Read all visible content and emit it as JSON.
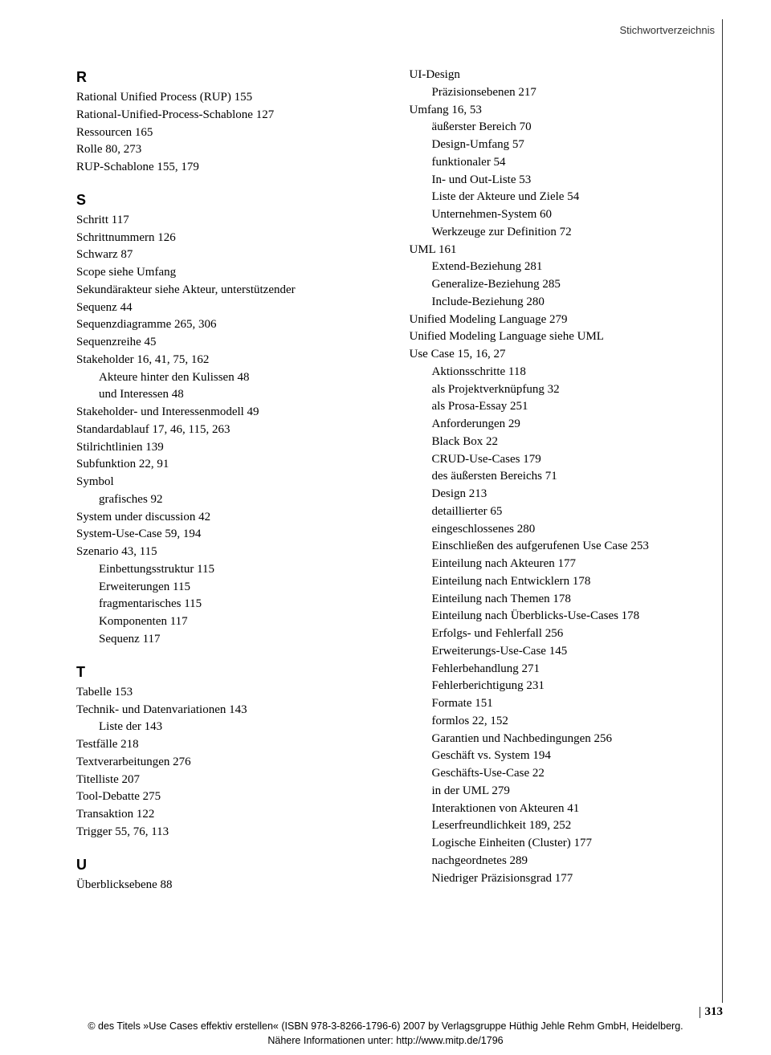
{
  "running_head": "Stichwortverzeichnis",
  "page_number": "313",
  "copyright_line1": "© des Titels »Use Cases effektiv erstellen« (ISBN 978-3-8266-1796-6) 2007 by Verlagsgruppe Hüthig Jehle Rehm GmbH, Heidelberg.",
  "copyright_line2": "Nähere Informationen unter: http://www.mitp.de/1796",
  "colors": {
    "background": "#ffffff",
    "text": "#000000",
    "rule": "#333333"
  },
  "typography": {
    "body_family": "Georgia / Times serif",
    "body_size_pt": 11,
    "letter_family": "Arial/Helvetica sans-serif",
    "letter_size_pt": 14,
    "letter_weight": "bold",
    "line_height": 1.45
  },
  "left_column": [
    {
      "t": "letter",
      "v": "R"
    },
    {
      "t": "e0",
      "v": "Rational Unified Process (RUP) 155"
    },
    {
      "t": "e0",
      "v": "Rational-Unified-Process-Schablone 127"
    },
    {
      "t": "e0",
      "v": "Ressourcen 165"
    },
    {
      "t": "e0",
      "v": "Rolle 80, 273"
    },
    {
      "t": "e0",
      "v": "RUP-Schablone 155, 179"
    },
    {
      "t": "letter",
      "v": "S"
    },
    {
      "t": "e0",
      "v": "Schritt 117"
    },
    {
      "t": "e0",
      "v": "Schrittnummern 126"
    },
    {
      "t": "e0",
      "v": "Schwarz 87"
    },
    {
      "t": "e0",
      "v": "Scope siehe Umfang"
    },
    {
      "t": "hang",
      "v": "Sekundärakteur siehe Akteur, unterstützender"
    },
    {
      "t": "e0",
      "v": "Sequenz 44"
    },
    {
      "t": "e0",
      "v": "Sequenzdiagramme 265, 306"
    },
    {
      "t": "e0",
      "v": "Sequenzreihe 45"
    },
    {
      "t": "e0",
      "v": "Stakeholder 16, 41, 75, 162"
    },
    {
      "t": "e1",
      "v": "Akteure hinter den Kulissen 48"
    },
    {
      "t": "e1",
      "v": "und Interessen 48"
    },
    {
      "t": "e0",
      "v": "Stakeholder- und Interessenmodell 49"
    },
    {
      "t": "e0",
      "v": "Standardablauf 17, 46, 115, 263"
    },
    {
      "t": "e0",
      "v": "Stilrichtlinien 139"
    },
    {
      "t": "e0",
      "v": "Subfunktion 22, 91"
    },
    {
      "t": "e0",
      "v": "Symbol"
    },
    {
      "t": "e1",
      "v": "grafisches 92"
    },
    {
      "t": "e0",
      "v": "System under discussion 42"
    },
    {
      "t": "e0",
      "v": "System-Use-Case 59, 194"
    },
    {
      "t": "e0",
      "v": "Szenario 43, 115"
    },
    {
      "t": "e1",
      "v": "Einbettungsstruktur 115"
    },
    {
      "t": "e1",
      "v": "Erweiterungen 115"
    },
    {
      "t": "e1",
      "v": "fragmentarisches 115"
    },
    {
      "t": "e1",
      "v": "Komponenten 117"
    },
    {
      "t": "e1",
      "v": "Sequenz 117"
    },
    {
      "t": "letter",
      "v": "T"
    },
    {
      "t": "e0",
      "v": "Tabelle 153"
    },
    {
      "t": "e0",
      "v": "Technik- und Datenvariationen 143"
    },
    {
      "t": "e1",
      "v": "Liste der 143"
    },
    {
      "t": "e0",
      "v": "Testfälle 218"
    },
    {
      "t": "e0",
      "v": "Textverarbeitungen 276"
    },
    {
      "t": "e0",
      "v": "Titelliste 207"
    },
    {
      "t": "e0",
      "v": "Tool-Debatte 275"
    },
    {
      "t": "e0",
      "v": "Transaktion 122"
    },
    {
      "t": "e0",
      "v": "Trigger 55, 76, 113"
    },
    {
      "t": "letter",
      "v": "U"
    },
    {
      "t": "e0",
      "v": "Überblicksebene 88"
    }
  ],
  "right_column": [
    {
      "t": "e0",
      "v": "UI-Design"
    },
    {
      "t": "e1",
      "v": "Präzisionsebenen 217"
    },
    {
      "t": "e0",
      "v": "Umfang 16, 53"
    },
    {
      "t": "e1",
      "v": "äußerster Bereich 70"
    },
    {
      "t": "e1",
      "v": "Design-Umfang 57"
    },
    {
      "t": "e1",
      "v": "funktionaler 54"
    },
    {
      "t": "e1",
      "v": "In- und Out-Liste 53"
    },
    {
      "t": "e1",
      "v": "Liste der Akteure und Ziele 54"
    },
    {
      "t": "e1",
      "v": "Unternehmen-System 60"
    },
    {
      "t": "e1",
      "v": "Werkzeuge zur Definition 72"
    },
    {
      "t": "e0",
      "v": "UML 161"
    },
    {
      "t": "e1",
      "v": "Extend-Beziehung 281"
    },
    {
      "t": "e1",
      "v": "Generalize-Beziehung 285"
    },
    {
      "t": "e1",
      "v": "Include-Beziehung 280"
    },
    {
      "t": "e0",
      "v": "Unified Modeling Language 279"
    },
    {
      "t": "e0",
      "v": "Unified Modeling Language siehe UML"
    },
    {
      "t": "e0",
      "v": "Use Case 15, 16, 27"
    },
    {
      "t": "e1",
      "v": "Aktionsschritte 118"
    },
    {
      "t": "e1",
      "v": "als Projektverknüpfung 32"
    },
    {
      "t": "e1",
      "v": "als Prosa-Essay 251"
    },
    {
      "t": "e1",
      "v": "Anforderungen 29"
    },
    {
      "t": "e1",
      "v": "Black Box 22"
    },
    {
      "t": "e1",
      "v": "CRUD-Use-Cases 179"
    },
    {
      "t": "e1",
      "v": "des äußersten Bereichs 71"
    },
    {
      "t": "e1",
      "v": "Design 213"
    },
    {
      "t": "e1",
      "v": "detaillierter 65"
    },
    {
      "t": "e1",
      "v": "eingeschlossenes 280"
    },
    {
      "t": "e1hang",
      "v": "Einschließen des aufgerufenen Use Case 253"
    },
    {
      "t": "e1",
      "v": "Einteilung nach Akteuren 177"
    },
    {
      "t": "e1",
      "v": "Einteilung nach Entwicklern 178"
    },
    {
      "t": "e1",
      "v": "Einteilung nach Themen 178"
    },
    {
      "t": "e1hang",
      "v": "Einteilung nach Überblicks-Use-Cases 178"
    },
    {
      "t": "e1",
      "v": "Erfolgs- und Fehlerfall 256"
    },
    {
      "t": "e1",
      "v": "Erweiterungs-Use-Case 145"
    },
    {
      "t": "e1",
      "v": "Fehlerbehandlung 271"
    },
    {
      "t": "e1",
      "v": "Fehlerberichtigung 231"
    },
    {
      "t": "e1",
      "v": "Formate 151"
    },
    {
      "t": "e1",
      "v": "formlos 22, 152"
    },
    {
      "t": "e1",
      "v": "Garantien und Nachbedingungen 256"
    },
    {
      "t": "e1",
      "v": "Geschäft vs. System 194"
    },
    {
      "t": "e1",
      "v": "Geschäfts-Use-Case 22"
    },
    {
      "t": "e1",
      "v": "in der UML 279"
    },
    {
      "t": "e1",
      "v": "Interaktionen von Akteuren 41"
    },
    {
      "t": "e1",
      "v": "Leserfreundlichkeit 189, 252"
    },
    {
      "t": "e1",
      "v": "Logische Einheiten (Cluster) 177"
    },
    {
      "t": "e1",
      "v": "nachgeordnetes 289"
    },
    {
      "t": "e1",
      "v": "Niedriger Präzisionsgrad 177"
    }
  ]
}
